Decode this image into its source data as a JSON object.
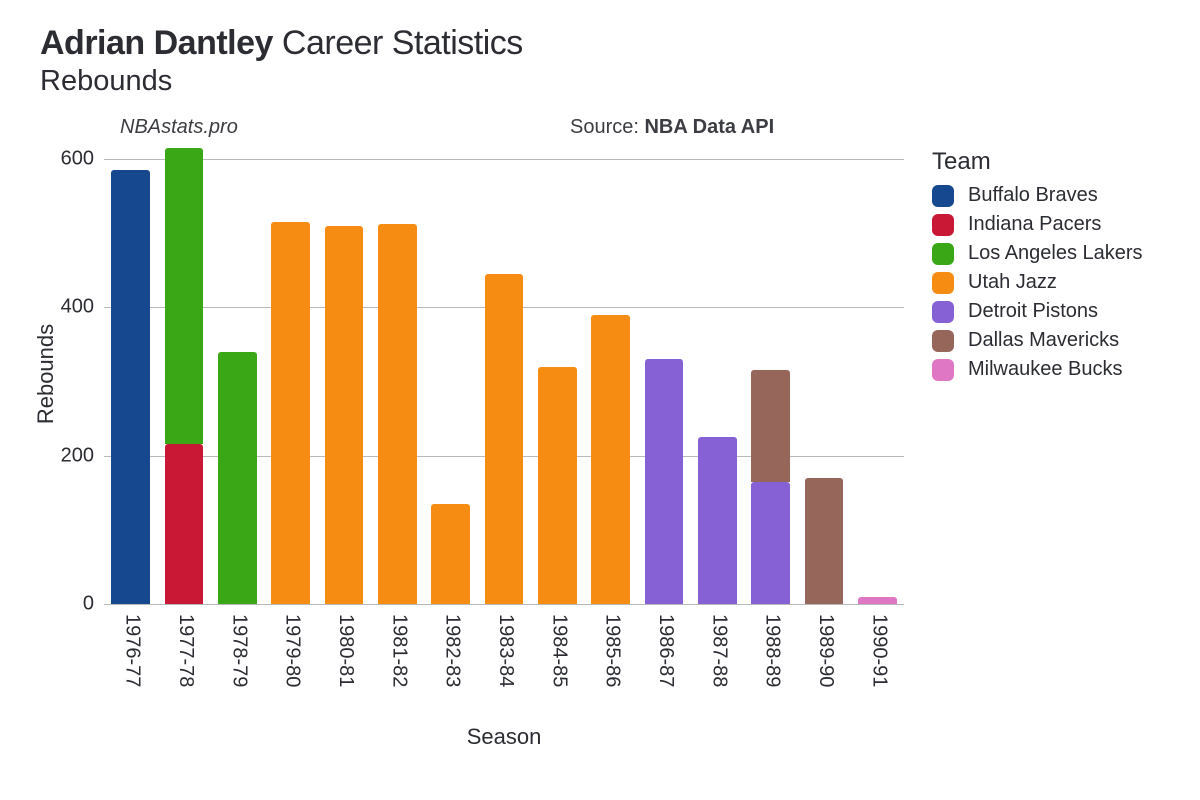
{
  "title": {
    "player_name": "Adrian Dantley",
    "suffix": "Career Statistics",
    "stat_name": "Rebounds",
    "title_fontsize": 34,
    "subtitle_fontsize": 29
  },
  "annotations": {
    "site": "NBAstats.pro",
    "source_label": "Source: ",
    "source_name": "NBA Data API",
    "fontsize": 20
  },
  "chart": {
    "type": "stacked-bar",
    "background_color": "#ffffff",
    "grid_color": "#b7b9bd",
    "xlabel": "Season",
    "ylabel": "Rebounds",
    "label_fontsize": 22,
    "tick_fontsize": 20,
    "ylim": [
      0,
      620
    ],
    "yticks": [
      0,
      200,
      400,
      600
    ],
    "bar_width_ratio": 0.72,
    "seasons": [
      "1976-77",
      "1977-78",
      "1978-79",
      "1979-80",
      "1980-81",
      "1981-82",
      "1982-83",
      "1983-84",
      "1984-85",
      "1985-86",
      "1986-87",
      "1987-88",
      "1988-89",
      "1989-90",
      "1990-91"
    ],
    "series": [
      {
        "team": "Buffalo Braves",
        "color": "#16488f",
        "values": [
          585,
          0,
          0,
          0,
          0,
          0,
          0,
          0,
          0,
          0,
          0,
          0,
          0,
          0,
          0
        ]
      },
      {
        "team": "Indiana Pacers",
        "color": "#c81836",
        "values": [
          0,
          215,
          0,
          0,
          0,
          0,
          0,
          0,
          0,
          0,
          0,
          0,
          0,
          0,
          0
        ]
      },
      {
        "team": "Los Angeles Lakers",
        "color": "#3aa816",
        "values": [
          0,
          400,
          340,
          0,
          0,
          0,
          0,
          0,
          0,
          0,
          0,
          0,
          0,
          0,
          0
        ]
      },
      {
        "team": "Utah Jazz",
        "color": "#f68c12",
        "values": [
          0,
          0,
          0,
          515,
          510,
          512,
          135,
          445,
          320,
          390,
          0,
          0,
          0,
          0,
          0
        ]
      },
      {
        "team": "Detroit Pistons",
        "color": "#8661d6",
        "values": [
          0,
          0,
          0,
          0,
          0,
          0,
          0,
          0,
          0,
          0,
          330,
          225,
          165,
          0,
          0
        ]
      },
      {
        "team": "Dallas Mavericks",
        "color": "#97665a",
        "values": [
          0,
          0,
          0,
          0,
          0,
          0,
          0,
          0,
          0,
          0,
          0,
          0,
          150,
          170,
          0
        ]
      },
      {
        "team": "Milwaukee Bucks",
        "color": "#e077c5",
        "values": [
          0,
          0,
          0,
          0,
          0,
          0,
          0,
          0,
          0,
          0,
          0,
          0,
          0,
          0,
          10
        ]
      }
    ]
  },
  "legend": {
    "title": "Team",
    "title_fontsize": 24,
    "item_fontsize": 20,
    "items": [
      {
        "label": "Buffalo Braves",
        "color": "#16488f"
      },
      {
        "label": "Indiana Pacers",
        "color": "#c81836"
      },
      {
        "label": "Los Angeles Lakers",
        "color": "#3aa816"
      },
      {
        "label": "Utah Jazz",
        "color": "#f68c12"
      },
      {
        "label": "Detroit Pistons",
        "color": "#8661d6"
      },
      {
        "label": "Dallas Mavericks",
        "color": "#97665a"
      },
      {
        "label": "Milwaukee Bucks",
        "color": "#e077c5"
      }
    ]
  }
}
